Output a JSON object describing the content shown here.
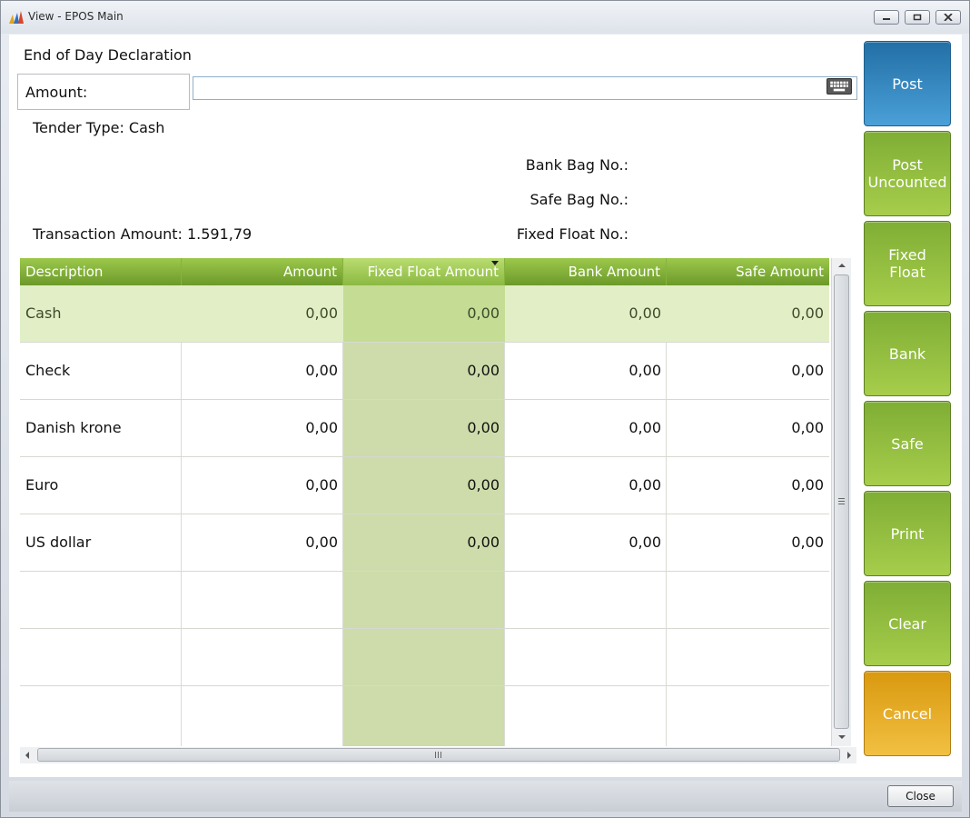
{
  "window": {
    "title": "View - EPOS Main",
    "controls": {
      "minimize": "minimize-icon",
      "maximize": "restore-icon",
      "close": "close-icon"
    }
  },
  "form": {
    "heading": "End of Day Declaration",
    "amount_label": "Amount:",
    "amount_value": "",
    "keyboard_icon": "keyboard-icon"
  },
  "info": {
    "tender_type": "Tender Type: Cash",
    "transaction_amount": "Transaction Amount: 1.591,79",
    "bank_bag_label": "Bank Bag No.:",
    "safe_bag_label": "Safe Bag No.:",
    "fixed_float_label": "Fixed Float No.:"
  },
  "grid": {
    "columns": [
      "Description",
      "Amount",
      "Fixed Float Amount",
      "Bank Amount",
      "Safe Amount"
    ],
    "sorted_column": "Fixed Float Amount",
    "rows": [
      {
        "description": "Cash",
        "amount": "0,00",
        "fixed_float": "0,00",
        "bank": "0,00",
        "safe": "0,00"
      },
      {
        "description": "Check",
        "amount": "0,00",
        "fixed_float": "0,00",
        "bank": "0,00",
        "safe": "0,00"
      },
      {
        "description": "Danish krone",
        "amount": "0,00",
        "fixed_float": "0,00",
        "bank": "0,00",
        "safe": "0,00"
      },
      {
        "description": "Euro",
        "amount": "0,00",
        "fixed_float": "0,00",
        "bank": "0,00",
        "safe": "0,00"
      },
      {
        "description": "US dollar",
        "amount": "0,00",
        "fixed_float": "0,00",
        "bank": "0,00",
        "safe": "0,00"
      }
    ],
    "selected_row": "Cash"
  },
  "actions": {
    "post": "Post",
    "post_uncounted": "Post Uncounted",
    "fixed_float": "Fixed Float",
    "bank": "Bank",
    "safe": "Safe",
    "print": "Print",
    "clear": "Clear",
    "cancel": "Cancel"
  },
  "footer": {
    "close": "Close"
  },
  "colors": {
    "header_green": "#7aa834",
    "button_green": "#8fbb3e",
    "post_blue": "#3284c0",
    "cancel_orange": "#e5ab25",
    "selected_row": "#e2efc6",
    "sorted_column_tint": "#cddcaa"
  }
}
